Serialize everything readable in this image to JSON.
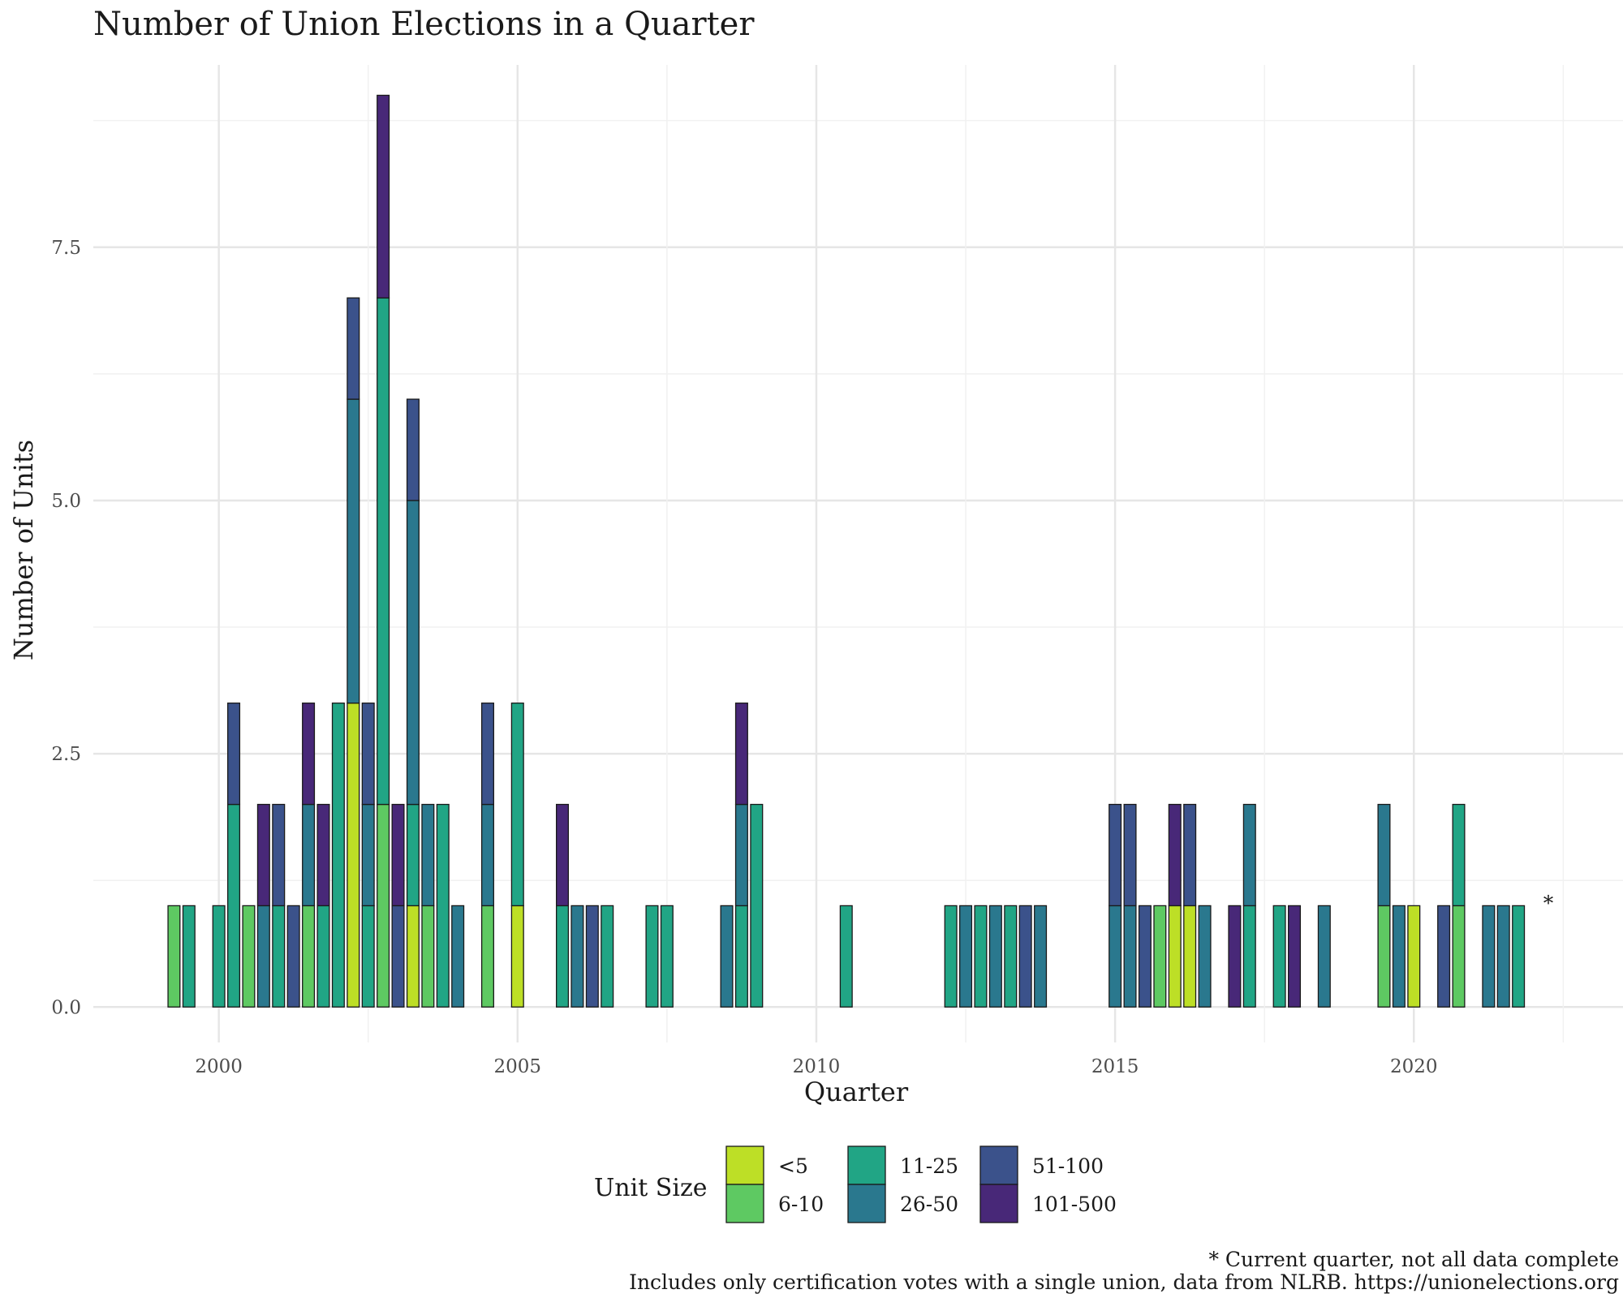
{
  "chart_data": {
    "type": "bar",
    "stacked": true,
    "title": "Number of Union Elections in a Quarter",
    "xlabel": "Quarter",
    "ylabel": "Number of Units",
    "xlim": [
      1997.9,
      2023.5
    ],
    "ylim": [
      -0.35,
      9.3
    ],
    "x_ticks": [
      2000,
      2005,
      2010,
      2015,
      2020
    ],
    "x_tick_labels": [
      "2000",
      "2005",
      "2010",
      "2015",
      "2020"
    ],
    "y_ticks": [
      0,
      2.5,
      5,
      7.5
    ],
    "y_tick_labels": [
      "0.0",
      "2.5",
      "5.0",
      "7.5"
    ],
    "legend": {
      "title": "Unit Size",
      "position": "bottom",
      "entries": [
        {
          "key": "lt5",
          "label": "<5",
          "color": "#bddf26"
        },
        {
          "key": "s6_10",
          "label": "6-10",
          "color": "#5ec962"
        },
        {
          "key": "s11_25",
          "label": "11-25",
          "color": "#21a585"
        },
        {
          "key": "s26_50",
          "label": "26-50",
          "color": "#2a788e"
        },
        {
          "key": "s51_100",
          "label": "51-100",
          "color": "#3b528b"
        },
        {
          "key": "s101_500",
          "label": "101-500",
          "color": "#482878"
        }
      ]
    },
    "annotation": {
      "x": 2022.25,
      "y": 1.05,
      "text": "*"
    },
    "caption_lines": [
      "* Current quarter, not all data complete",
      "Includes only certification votes with a single union, data from NLRB. https://unionelections.org"
    ],
    "bar_width_years": 0.2,
    "series_note": "each bar lists stacked segments from bottom to top as [unit size key, count]",
    "bars": [
      {
        "x": 1999.25,
        "stack": [
          [
            "s6_10",
            1
          ]
        ]
      },
      {
        "x": 1999.5,
        "stack": [
          [
            "s11_25",
            1
          ]
        ]
      },
      {
        "x": 2000.0,
        "stack": [
          [
            "s11_25",
            1
          ]
        ]
      },
      {
        "x": 2000.25,
        "stack": [
          [
            "s11_25",
            2
          ],
          [
            "s51_100",
            1
          ]
        ]
      },
      {
        "x": 2000.5,
        "stack": [
          [
            "s6_10",
            1
          ]
        ]
      },
      {
        "x": 2000.75,
        "stack": [
          [
            "s26_50",
            1
          ],
          [
            "s101_500",
            1
          ]
        ]
      },
      {
        "x": 2001.0,
        "stack": [
          [
            "s11_25",
            1
          ],
          [
            "s51_100",
            1
          ]
        ]
      },
      {
        "x": 2001.25,
        "stack": [
          [
            "s51_100",
            1
          ]
        ]
      },
      {
        "x": 2001.5,
        "stack": [
          [
            "s6_10",
            1
          ],
          [
            "s26_50",
            1
          ],
          [
            "s101_500",
            1
          ]
        ]
      },
      {
        "x": 2001.75,
        "stack": [
          [
            "s11_25",
            1
          ],
          [
            "s101_500",
            1
          ]
        ]
      },
      {
        "x": 2002.0,
        "stack": [
          [
            "s11_25",
            3
          ]
        ]
      },
      {
        "x": 2002.25,
        "stack": [
          [
            "lt5",
            3
          ],
          [
            "s26_50",
            3
          ],
          [
            "s51_100",
            1
          ]
        ]
      },
      {
        "x": 2002.5,
        "stack": [
          [
            "s11_25",
            1
          ],
          [
            "s26_50",
            1
          ],
          [
            "s51_100",
            1
          ]
        ]
      },
      {
        "x": 2002.75,
        "stack": [
          [
            "s6_10",
            2
          ],
          [
            "s11_25",
            5
          ],
          [
            "s101_500",
            2
          ]
        ]
      },
      {
        "x": 2003.0,
        "stack": [
          [
            "s51_100",
            1
          ],
          [
            "s101_500",
            1
          ]
        ]
      },
      {
        "x": 2003.25,
        "stack": [
          [
            "lt5",
            1
          ],
          [
            "s11_25",
            1
          ],
          [
            "s26_50",
            3
          ],
          [
            "s51_100",
            1
          ]
        ]
      },
      {
        "x": 2003.5,
        "stack": [
          [
            "s6_10",
            1
          ],
          [
            "s26_50",
            1
          ]
        ]
      },
      {
        "x": 2003.75,
        "stack": [
          [
            "s11_25",
            2
          ]
        ]
      },
      {
        "x": 2004.0,
        "stack": [
          [
            "s26_50",
            1
          ]
        ]
      },
      {
        "x": 2004.5,
        "stack": [
          [
            "s6_10",
            1
          ],
          [
            "s26_50",
            1
          ],
          [
            "s51_100",
            1
          ]
        ]
      },
      {
        "x": 2005.0,
        "stack": [
          [
            "lt5",
            1
          ],
          [
            "s11_25",
            2
          ]
        ]
      },
      {
        "x": 2005.75,
        "stack": [
          [
            "s11_25",
            1
          ],
          [
            "s101_500",
            1
          ]
        ]
      },
      {
        "x": 2006.0,
        "stack": [
          [
            "s26_50",
            1
          ]
        ]
      },
      {
        "x": 2006.25,
        "stack": [
          [
            "s51_100",
            1
          ]
        ]
      },
      {
        "x": 2006.5,
        "stack": [
          [
            "s11_25",
            1
          ]
        ]
      },
      {
        "x": 2007.25,
        "stack": [
          [
            "s11_25",
            1
          ]
        ]
      },
      {
        "x": 2007.5,
        "stack": [
          [
            "s11_25",
            1
          ]
        ]
      },
      {
        "x": 2008.5,
        "stack": [
          [
            "s26_50",
            1
          ]
        ]
      },
      {
        "x": 2008.75,
        "stack": [
          [
            "s11_25",
            1
          ],
          [
            "s26_50",
            1
          ],
          [
            "s101_500",
            1
          ]
        ]
      },
      {
        "x": 2009.0,
        "stack": [
          [
            "s11_25",
            2
          ]
        ]
      },
      {
        "x": 2010.5,
        "stack": [
          [
            "s11_25",
            1
          ]
        ]
      },
      {
        "x": 2012.25,
        "stack": [
          [
            "s11_25",
            1
          ]
        ]
      },
      {
        "x": 2012.5,
        "stack": [
          [
            "s26_50",
            1
          ]
        ]
      },
      {
        "x": 2012.75,
        "stack": [
          [
            "s11_25",
            1
          ]
        ]
      },
      {
        "x": 2013.0,
        "stack": [
          [
            "s26_50",
            1
          ]
        ]
      },
      {
        "x": 2013.25,
        "stack": [
          [
            "s11_25",
            1
          ]
        ]
      },
      {
        "x": 2013.5,
        "stack": [
          [
            "s51_100",
            1
          ]
        ]
      },
      {
        "x": 2013.75,
        "stack": [
          [
            "s26_50",
            1
          ]
        ]
      },
      {
        "x": 2015.0,
        "stack": [
          [
            "s26_50",
            1
          ],
          [
            "s51_100",
            1
          ]
        ]
      },
      {
        "x": 2015.25,
        "stack": [
          [
            "s26_50",
            1
          ],
          [
            "s51_100",
            1
          ]
        ]
      },
      {
        "x": 2015.5,
        "stack": [
          [
            "s51_100",
            1
          ]
        ]
      },
      {
        "x": 2015.75,
        "stack": [
          [
            "s6_10",
            1
          ]
        ]
      },
      {
        "x": 2016.0,
        "stack": [
          [
            "lt5",
            1
          ],
          [
            "s101_500",
            1
          ]
        ]
      },
      {
        "x": 2016.25,
        "stack": [
          [
            "lt5",
            1
          ],
          [
            "s51_100",
            1
          ]
        ]
      },
      {
        "x": 2016.5,
        "stack": [
          [
            "s26_50",
            1
          ]
        ]
      },
      {
        "x": 2017.0,
        "stack": [
          [
            "s101_500",
            1
          ]
        ]
      },
      {
        "x": 2017.25,
        "stack": [
          [
            "s11_25",
            1
          ],
          [
            "s26_50",
            1
          ]
        ]
      },
      {
        "x": 2017.75,
        "stack": [
          [
            "s11_25",
            1
          ]
        ]
      },
      {
        "x": 2018.0,
        "stack": [
          [
            "s101_500",
            1
          ]
        ]
      },
      {
        "x": 2018.5,
        "stack": [
          [
            "s26_50",
            1
          ]
        ]
      },
      {
        "x": 2019.5,
        "stack": [
          [
            "s6_10",
            1
          ],
          [
            "s26_50",
            1
          ]
        ]
      },
      {
        "x": 2019.75,
        "stack": [
          [
            "s26_50",
            1
          ]
        ]
      },
      {
        "x": 2020.0,
        "stack": [
          [
            "lt5",
            1
          ]
        ]
      },
      {
        "x": 2020.5,
        "stack": [
          [
            "s51_100",
            1
          ]
        ]
      },
      {
        "x": 2020.75,
        "stack": [
          [
            "s6_10",
            1
          ],
          [
            "s11_25",
            1
          ]
        ]
      },
      {
        "x": 2021.25,
        "stack": [
          [
            "s26_50",
            1
          ]
        ]
      },
      {
        "x": 2021.5,
        "stack": [
          [
            "s26_50",
            1
          ]
        ]
      },
      {
        "x": 2021.75,
        "stack": [
          [
            "s11_25",
            1
          ]
        ]
      }
    ]
  }
}
